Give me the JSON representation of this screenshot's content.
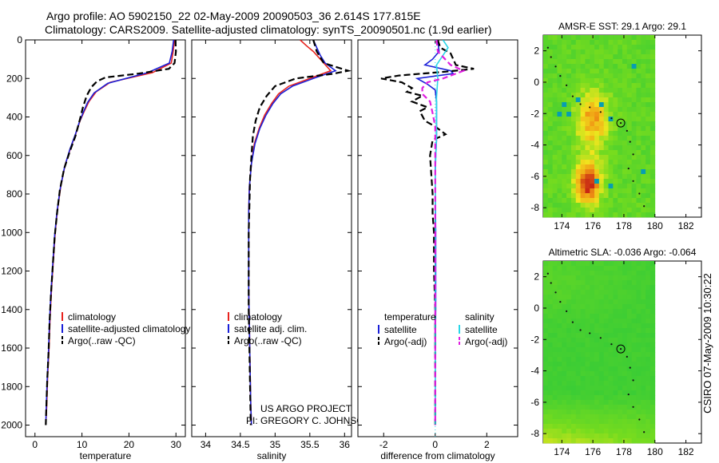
{
  "header": {
    "line1": "Argo profile: AO 5902150_22 02-May-2009 20090503_36 2.614S 177.815E",
    "line2": "Climatology: CARS2009. Satellite-adjusted climatology: synTS_20090501.nc (1.9d earlier)"
  },
  "colors": {
    "red": "#e8231e",
    "blue": "#1a1fd8",
    "black": "#000000",
    "cyan": "#29d6e8",
    "magenta": "#e01ee0"
  },
  "chart_data": [
    {
      "type": "line",
      "name": "temperature-panel",
      "xlabel": "temperature",
      "ylabel": "",
      "xlim": [
        -2,
        32
      ],
      "ylim": [
        2060,
        0
      ],
      "xticks": [
        0,
        10,
        20,
        30
      ],
      "yticks": [
        0,
        200,
        400,
        600,
        800,
        1000,
        1200,
        1400,
        1600,
        1800,
        2000
      ],
      "legend": [
        "climatology",
        "satellite-adjusted climatology",
        "Argo(..raw -QC)"
      ],
      "series": [
        {
          "name": "climatology",
          "color": "red",
          "dash": "",
          "points": [
            [
              29.7,
              0
            ],
            [
              29.4,
              60
            ],
            [
              29.0,
              120
            ],
            [
              25,
              170
            ],
            [
              16,
              220
            ],
            [
              13,
              270
            ],
            [
              11.5,
              320
            ],
            [
              10.5,
              370
            ],
            [
              9.6,
              420
            ],
            [
              8.8,
              480
            ],
            [
              7.6,
              560
            ],
            [
              6.4,
              650
            ],
            [
              5.5,
              760
            ],
            [
              4.8,
              880
            ],
            [
              4.3,
              1000
            ],
            [
              3.9,
              1150
            ],
            [
              3.5,
              1300
            ],
            [
              3.2,
              1450
            ],
            [
              3.0,
              1600
            ],
            [
              2.7,
              1750
            ],
            [
              2.5,
              1900
            ],
            [
              2.3,
              2000
            ]
          ]
        },
        {
          "name": "satellite-adjusted climatology",
          "color": "blue",
          "dash": "",
          "points": [
            [
              29.5,
              0
            ],
            [
              29.2,
              60
            ],
            [
              28.6,
              120
            ],
            [
              24,
              170
            ],
            [
              15.5,
              225
            ],
            [
              12.6,
              275
            ],
            [
              11.2,
              325
            ],
            [
              10.2,
              380
            ],
            [
              9.4,
              430
            ],
            [
              8.6,
              490
            ],
            [
              7.4,
              570
            ],
            [
              6.3,
              660
            ],
            [
              5.4,
              770
            ],
            [
              4.7,
              890
            ],
            [
              4.2,
              1010
            ],
            [
              3.8,
              1160
            ],
            [
              3.4,
              1310
            ],
            [
              3.1,
              1460
            ],
            [
              2.9,
              1610
            ],
            [
              2.6,
              1760
            ],
            [
              2.4,
              1910
            ],
            [
              2.3,
              2000
            ]
          ]
        },
        {
          "name": "Argo(..raw -QC)",
          "color": "black",
          "dash": "8,4",
          "points": [
            [
              29.9,
              0
            ],
            [
              30,
              60
            ],
            [
              29.7,
              120
            ],
            [
              28.5,
              150
            ],
            [
              22,
              175
            ],
            [
              15,
              195
            ],
            [
              13.2,
              215
            ],
            [
              12,
              245
            ],
            [
              11,
              290
            ],
            [
              10.2,
              350
            ],
            [
              9.5,
              420
            ],
            [
              8.6,
              500
            ],
            [
              7.4,
              580
            ],
            [
              6.2,
              670
            ],
            [
              5.3,
              780
            ],
            [
              4.7,
              900
            ],
            [
              4.2,
              1020
            ],
            [
              3.8,
              1170
            ],
            [
              3.4,
              1320
            ],
            [
              3.1,
              1470
            ],
            [
              2.9,
              1620
            ],
            [
              2.6,
              1770
            ],
            [
              2.4,
              1920
            ],
            [
              2.3,
              2000
            ]
          ]
        }
      ]
    },
    {
      "type": "line",
      "name": "salinity-panel",
      "xlabel": "salinity",
      "ylabel": "",
      "xlim": [
        33.8,
        36.1
      ],
      "ylim": [
        2060,
        0
      ],
      "xticks": [
        34,
        34.5,
        35,
        35.5,
        36
      ],
      "legend": [
        "climatology",
        "satellite adj. clim.",
        "Argo(..raw -QC)"
      ],
      "series": [
        {
          "name": "climatology",
          "color": "red",
          "dash": "",
          "points": [
            [
              35.36,
              0
            ],
            [
              35.45,
              30
            ],
            [
              35.55,
              60
            ],
            [
              35.65,
              100
            ],
            [
              35.8,
              160
            ],
            [
              35.5,
              200
            ],
            [
              35.2,
              240
            ],
            [
              35.05,
              280
            ],
            [
              34.95,
              330
            ],
            [
              34.85,
              390
            ],
            [
              34.77,
              460
            ],
            [
              34.7,
              540
            ],
            [
              34.66,
              640
            ],
            [
              34.63,
              760
            ],
            [
              34.62,
              900
            ],
            [
              34.62,
              1100
            ],
            [
              34.62,
              1300
            ],
            [
              34.63,
              1500
            ],
            [
              34.64,
              1700
            ],
            [
              34.65,
              1900
            ],
            [
              34.66,
              2000
            ]
          ]
        },
        {
          "name": "satellite adj. clim.",
          "color": "blue",
          "dash": "",
          "points": [
            [
              35.55,
              0
            ],
            [
              35.6,
              40
            ],
            [
              35.65,
              80
            ],
            [
              35.72,
              120
            ],
            [
              35.87,
              160
            ],
            [
              35.55,
              200
            ],
            [
              35.25,
              240
            ],
            [
              35.08,
              280
            ],
            [
              34.97,
              330
            ],
            [
              34.87,
              390
            ],
            [
              34.78,
              460
            ],
            [
              34.71,
              540
            ],
            [
              34.66,
              640
            ],
            [
              34.63,
              760
            ],
            [
              34.62,
              900
            ],
            [
              34.62,
              1100
            ],
            [
              34.62,
              1300
            ],
            [
              34.63,
              1500
            ],
            [
              34.64,
              1700
            ],
            [
              34.65,
              1900
            ],
            [
              34.66,
              2000
            ]
          ]
        },
        {
          "name": "Argo(..raw -QC)",
          "color": "black",
          "dash": "8,4",
          "points": [
            [
              35.55,
              0
            ],
            [
              35.6,
              60
            ],
            [
              35.7,
              120
            ],
            [
              36.05,
              160
            ],
            [
              35.85,
              175
            ],
            [
              35.3,
              200
            ],
            [
              35.0,
              240
            ],
            [
              34.88,
              290
            ],
            [
              34.78,
              350
            ],
            [
              34.72,
              420
            ],
            [
              34.68,
              500
            ],
            [
              34.66,
              600
            ],
            [
              34.64,
              720
            ],
            [
              34.63,
              860
            ],
            [
              34.62,
              1000
            ],
            [
              34.62,
              1200
            ],
            [
              34.62,
              1400
            ],
            [
              34.63,
              1600
            ],
            [
              34.64,
              1800
            ],
            [
              34.65,
              2000
            ]
          ]
        }
      ],
      "annotation": {
        "line1": "US ARGO PROJECT",
        "line2": "PI: GREGORY C. JOHNSON"
      }
    },
    {
      "type": "line",
      "name": "difference-panel",
      "xlabel": "difference from climatology",
      "ylabel": "",
      "xlim": [
        -3,
        3.2
      ],
      "ylim": [
        2060,
        0
      ],
      "xticks": [
        -2,
        0,
        2
      ],
      "legend_left": {
        "title": "temperature",
        "items": [
          "satellite",
          "Argo(-adj)"
        ]
      },
      "legend_right": {
        "title": "salinity",
        "items": [
          "satellite",
          "Argo(-adj)"
        ]
      },
      "series": [
        {
          "name": "temperature satellite",
          "color": "blue",
          "dash": "",
          "points": [
            [
              0.1,
              0
            ],
            [
              0.15,
              60
            ],
            [
              -0.1,
              100
            ],
            [
              -0.4,
              130
            ],
            [
              0.6,
              160
            ],
            [
              0.7,
              175
            ],
            [
              -0.7,
              200
            ],
            [
              -0.3,
              230
            ],
            [
              0.0,
              260
            ],
            [
              0.05,
              320
            ],
            [
              0.05,
              420
            ],
            [
              0.05,
              520
            ],
            [
              0.0,
              650
            ],
            [
              0.0,
              800
            ],
            [
              0.02,
              1000
            ],
            [
              0.02,
              1200
            ],
            [
              0.02,
              1400
            ],
            [
              0.0,
              1600
            ],
            [
              0.0,
              1800
            ],
            [
              0.0,
              2000
            ]
          ]
        },
        {
          "name": "temperature Argo(-adj)",
          "color": "black",
          "dash": "8,4",
          "points": [
            [
              0.1,
              0
            ],
            [
              0.2,
              40
            ],
            [
              0.6,
              70
            ],
            [
              0.8,
              130
            ],
            [
              1.5,
              150
            ],
            [
              0.4,
              165
            ],
            [
              -1.4,
              185
            ],
            [
              -2.1,
              200
            ],
            [
              -1.3,
              220
            ],
            [
              -0.9,
              250
            ],
            [
              -1.1,
              270
            ],
            [
              -0.5,
              290
            ],
            [
              -0.9,
              320
            ],
            [
              -0.3,
              350
            ],
            [
              -0.6,
              370
            ],
            [
              -0.4,
              420
            ],
            [
              0.0,
              450
            ],
            [
              0.4,
              490
            ],
            [
              -0.1,
              520
            ],
            [
              -0.2,
              600
            ],
            [
              -0.15,
              700
            ],
            [
              -0.1,
              800
            ],
            [
              -0.1,
              900
            ],
            [
              -0.05,
              1000
            ],
            [
              -0.05,
              1200
            ],
            [
              0.0,
              1400
            ],
            [
              0.0,
              1600
            ],
            [
              0.0,
              1800
            ],
            [
              0.0,
              2000
            ]
          ]
        },
        {
          "name": "salinity satellite",
          "color": "cyan",
          "dash": "",
          "points": [
            [
              0.3,
              0
            ],
            [
              0.5,
              40
            ],
            [
              0.3,
              80
            ],
            [
              0.05,
              130
            ],
            [
              0.1,
              200
            ],
            [
              0.05,
              300
            ],
            [
              0.05,
              400
            ],
            [
              0.05,
              500
            ],
            [
              0.0,
              700
            ],
            [
              0.0,
              900
            ],
            [
              0.0,
              1100
            ],
            [
              0.0,
              1300
            ],
            [
              0.0,
              1500
            ],
            [
              0.0,
              1700
            ],
            [
              0.0,
              1900
            ],
            [
              0.0,
              2000
            ]
          ]
        },
        {
          "name": "salinity Argo(-adj)",
          "color": "magenta",
          "dash": "7,4",
          "points": [
            [
              0.05,
              0
            ],
            [
              0.1,
              60
            ],
            [
              0.6,
              130
            ],
            [
              1.1,
              160
            ],
            [
              0.3,
              200
            ],
            [
              -0.3,
              220
            ],
            [
              -0.5,
              250
            ],
            [
              -0.5,
              280
            ],
            [
              -0.2,
              320
            ],
            [
              -0.1,
              380
            ],
            [
              0.0,
              450
            ],
            [
              0.0,
              600
            ],
            [
              0.0,
              800
            ],
            [
              0.0,
              1000
            ],
            [
              0.0,
              1200
            ],
            [
              0.0,
              1400
            ],
            [
              0.0,
              1600
            ],
            [
              0.0,
              1800
            ],
            [
              0.0,
              2000
            ]
          ]
        }
      ]
    },
    {
      "type": "heatmap",
      "name": "sst-map",
      "title": "AMSR-E SST: 29.1 Argo: 29.1",
      "xlim": [
        172.8,
        183
      ],
      "ylim": [
        -8.6,
        3
      ],
      "xticks": [
        174,
        176,
        178,
        180,
        182
      ],
      "yticks": [
        2,
        0,
        -2,
        -4,
        -6,
        -8
      ],
      "marker": [
        177.8,
        -2.6
      ]
    },
    {
      "type": "heatmap",
      "name": "sla-map",
      "title": "Altimetric SLA: -0.036 Argo: -0.064",
      "xlim": [
        172.8,
        183
      ],
      "ylim": [
        -8.6,
        3
      ],
      "xticks": [
        174,
        176,
        178,
        180,
        182
      ],
      "yticks": [
        2,
        0,
        -2,
        -4,
        -6,
        -8
      ],
      "marker": [
        177.8,
        -2.6
      ]
    }
  ],
  "footer": {
    "stamp": "CSIRO 07-May-2009 10:30:22"
  }
}
